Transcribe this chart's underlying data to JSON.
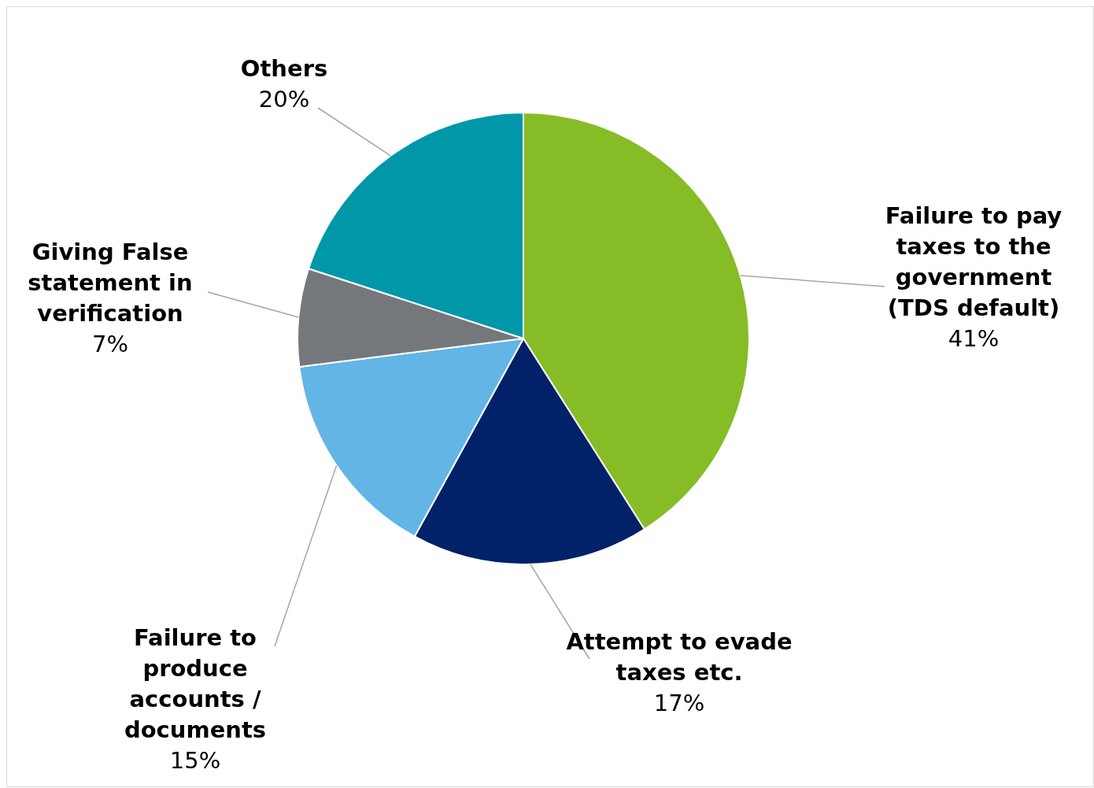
{
  "chart_data": {
    "type": "pie",
    "categories": [
      "Failure to pay taxes to the government (TDS default)",
      "Attempt to evade taxes etc.",
      "Failure to produce accounts / documents",
      "Giving False statement in verification",
      "Others"
    ],
    "values": [
      41,
      17,
      15,
      7,
      20
    ],
    "colors": [
      "#86bc25",
      "#012169",
      "#62b5e5",
      "#75787b",
      "#0097a9"
    ],
    "value_labels": [
      "41%",
      "17%",
      "15%",
      "7%",
      "20%"
    ],
    "legend": false
  }
}
